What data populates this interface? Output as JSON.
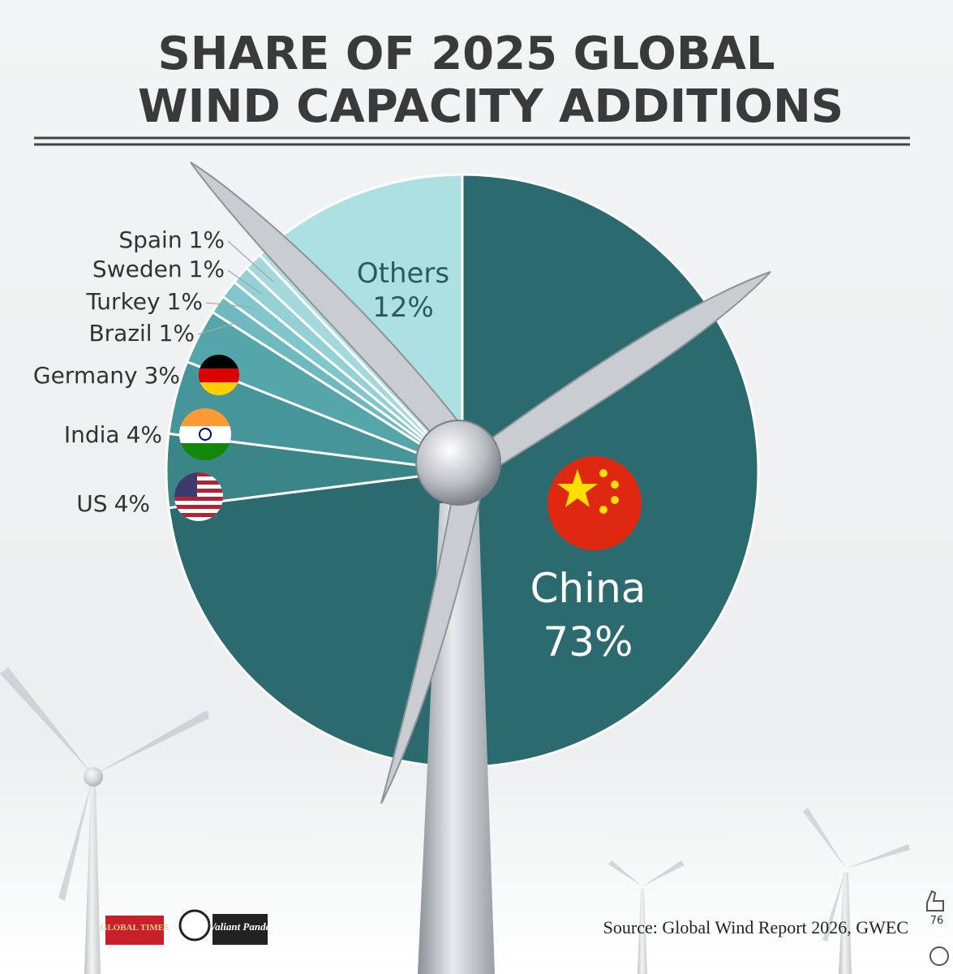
{
  "chart_data": {
    "type": "pie",
    "title": [
      "SHARE OF 2025 GLOBAL",
      "WIND CAPACITY ADDITIONS"
    ],
    "categories": [
      "China",
      "US",
      "India",
      "Germany",
      "Brazil",
      "Turkey",
      "Sweden",
      "Spain",
      "Others"
    ],
    "values": [
      73,
      4,
      4,
      3,
      1,
      1,
      1,
      1,
      12
    ],
    "value_labels": [
      "73%",
      "4%",
      "4%",
      "3%",
      "1%",
      "1%",
      "1%",
      "1%",
      "12%"
    ],
    "colors": [
      "#2b6b70",
      "#3a8588",
      "#46959a",
      "#55a6aa",
      "#6db9bd",
      "#80c6ca",
      "#93d1d4",
      "#a3d9dc",
      "#ade0e3"
    ],
    "source": "Source: Global Wind Report 2026, GWEC"
  },
  "logos": {
    "publisher": "GLOBAL TIMES",
    "partner": "Valiant Panda"
  },
  "ui": {
    "reaction_count": 76
  }
}
